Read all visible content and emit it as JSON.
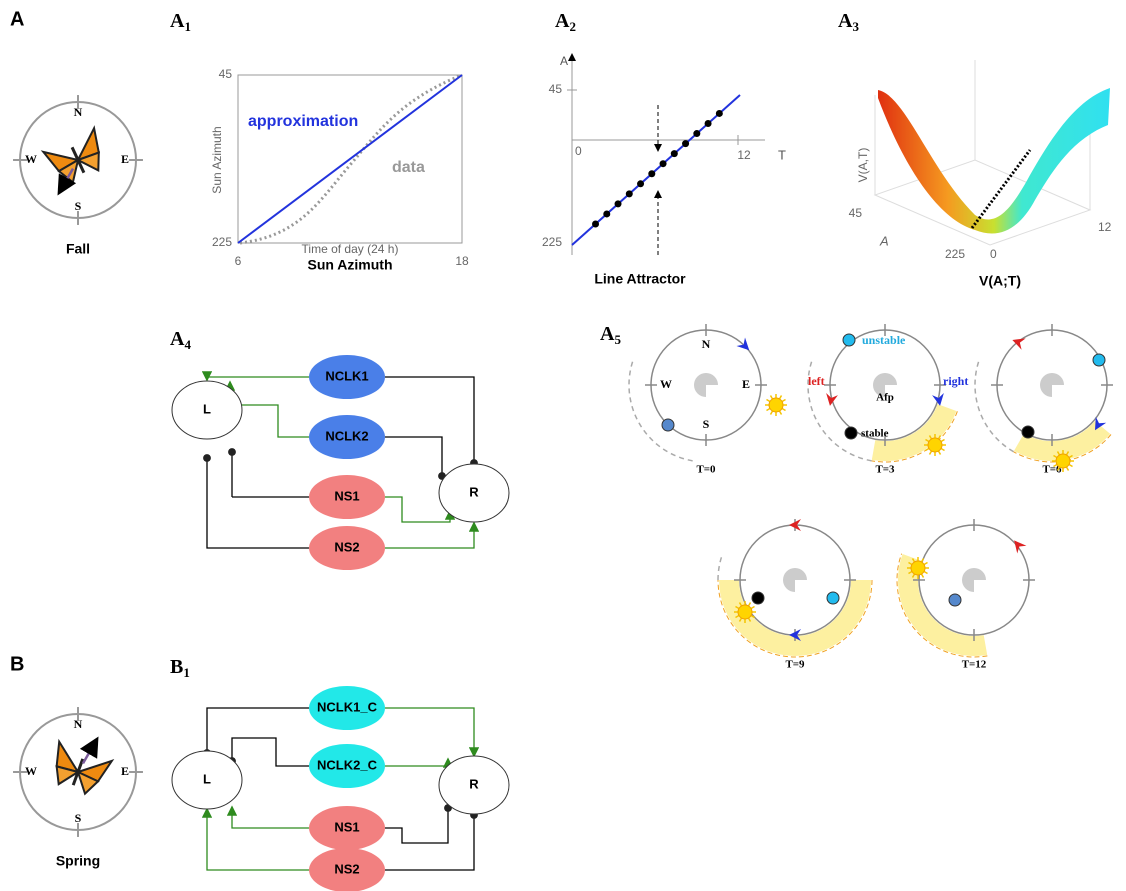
{
  "panels": {
    "A": {
      "label": "A",
      "compass": [
        "N",
        "E",
        "S",
        "W"
      ],
      "caption": "Fall"
    },
    "A1": {
      "label": "A",
      "sub": "1",
      "yticks": [
        45,
        225
      ],
      "xticks": [
        6,
        18
      ],
      "y_axis_label": "Sun Azimuth",
      "x_axis_label": "Time of day (24 h)",
      "title": "Sun Azimuth",
      "legend": [
        "approximation",
        "data"
      ]
    },
    "A2": {
      "label": "A",
      "sub": "2",
      "y_axis_label": "A",
      "x_axis_label": "T",
      "yticks": [
        45,
        225
      ],
      "xticks": [
        0,
        12
      ],
      "title": "Line Attractor"
    },
    "A3": {
      "label": "A",
      "sub": "3",
      "z_axis_label": "V(A,T)",
      "a_axis_label": "A",
      "a_ticks": [
        45,
        225
      ],
      "t_ticks": [
        0,
        12
      ],
      "title": "V(A;T)"
    },
    "A4": {
      "label": "A",
      "sub": "4",
      "nodes": [
        "L",
        "R",
        "NCLK1",
        "NCLK2",
        "NS1",
        "NS2"
      ]
    },
    "A5": {
      "label": "A",
      "sub": "5",
      "compass": [
        "N",
        "E",
        "S",
        "W"
      ],
      "annotations": [
        "unstable",
        "stable",
        "left",
        "right",
        "Afp"
      ],
      "times": [
        "T=0",
        "T=3",
        "T=6",
        "T=9",
        "T=12"
      ]
    },
    "B": {
      "label": "B",
      "compass": [
        "N",
        "E",
        "S",
        "W"
      ],
      "caption": "Spring"
    },
    "B1": {
      "label": "B",
      "sub": "1",
      "nodes": [
        "L",
        "R",
        "NCLK1_C",
        "NCLK2_C",
        "NS1",
        "NS2"
      ]
    }
  }
}
